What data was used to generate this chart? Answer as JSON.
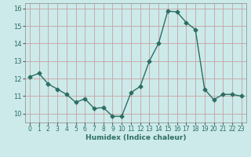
{
  "x": [
    0,
    1,
    2,
    3,
    4,
    5,
    6,
    7,
    8,
    9,
    10,
    11,
    12,
    13,
    14,
    15,
    16,
    17,
    18,
    19,
    20,
    21,
    22,
    23
  ],
  "y": [
    12.1,
    12.3,
    11.7,
    11.4,
    11.1,
    10.65,
    10.85,
    10.3,
    10.35,
    9.85,
    9.85,
    11.2,
    11.55,
    13.0,
    14.0,
    15.85,
    15.8,
    15.2,
    14.8,
    11.4,
    10.8,
    11.1,
    11.1,
    11.0
  ],
  "xlabel": "Humidex (Indice chaleur)",
  "xlim": [
    -0.5,
    23.5
  ],
  "ylim": [
    9.5,
    16.3
  ],
  "yticks": [
    10,
    11,
    12,
    13,
    14,
    15,
    16
  ],
  "xticks": [
    0,
    1,
    2,
    3,
    4,
    5,
    6,
    7,
    8,
    9,
    10,
    11,
    12,
    13,
    14,
    15,
    16,
    17,
    18,
    19,
    20,
    21,
    22,
    23
  ],
  "line_color": "#2d6e63",
  "bg_color": "#cceaea",
  "grid_color_major": "#c8a0a0",
  "marker": "D",
  "marker_size": 2.5,
  "line_width": 1.0
}
